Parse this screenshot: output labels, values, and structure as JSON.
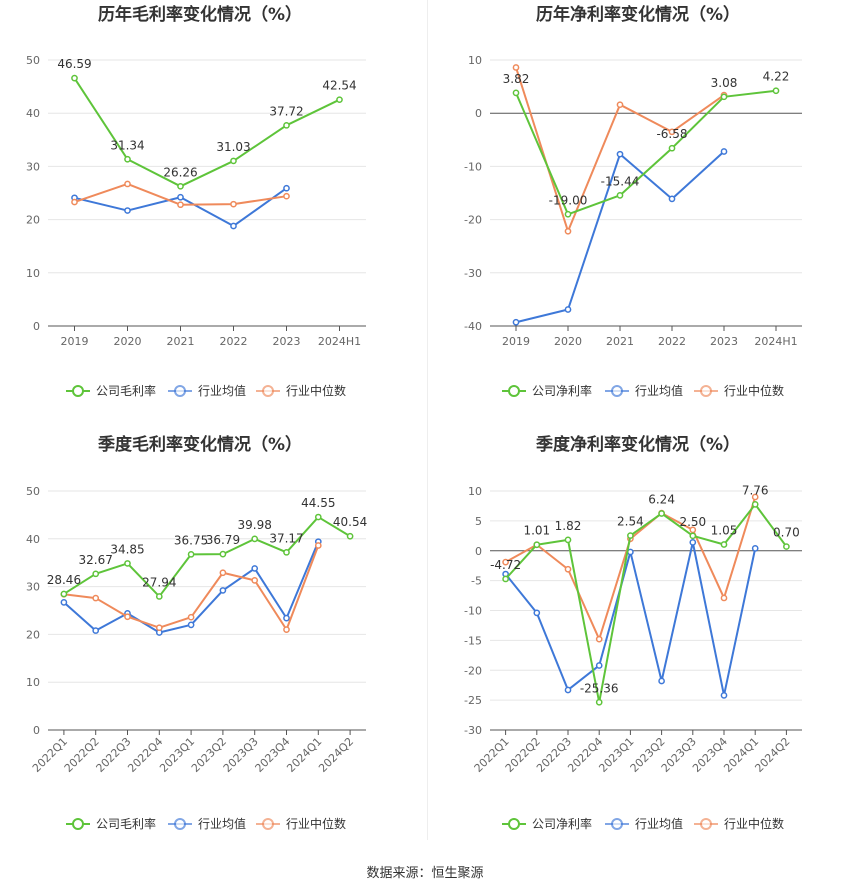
{
  "colors": {
    "company": "#5ec43a",
    "avg": "#3e78d8",
    "median": "#ef8a5b"
  },
  "source_label": "数据来源：恒生聚源",
  "chart_data": [
    {
      "type": "line",
      "title": "历年毛利率变化情况（%）",
      "categories": [
        "2019",
        "2020",
        "2021",
        "2022",
        "2023",
        "2024H1"
      ],
      "ylim": [
        0,
        50
      ],
      "yticks": [
        "0",
        "10",
        "20",
        "30",
        "40",
        "50"
      ],
      "series": [
        {
          "name": "公司毛利率",
          "key": "company",
          "values": [
            46.59,
            31.34,
            26.26,
            31.03,
            37.72,
            42.54
          ],
          "labels": [
            "46.59",
            "31.34",
            "26.26",
            "31.03",
            "37.72",
            "42.54"
          ]
        },
        {
          "name": "行业均值",
          "key": "avg",
          "values": [
            24.1,
            21.7,
            24.2,
            18.8,
            25.9,
            null
          ]
        },
        {
          "name": "行业中位数",
          "key": "median",
          "values": [
            23.3,
            26.7,
            22.8,
            22.9,
            24.4,
            null
          ]
        }
      ]
    },
    {
      "type": "line",
      "title": "历年净利率变化情况（%）",
      "categories": [
        "2019",
        "2020",
        "2021",
        "2022",
        "2023",
        "2024H1"
      ],
      "ylim": [
        -40,
        10
      ],
      "yticks": [
        "-40",
        "-30",
        "-20",
        "-10",
        "0",
        "10"
      ],
      "series": [
        {
          "name": "公司净利率",
          "key": "company",
          "values": [
            3.82,
            -19.0,
            -15.44,
            -6.58,
            3.08,
            4.22
          ],
          "labels": [
            "3.82",
            "-19.00",
            "-15.44",
            "-6.58",
            "3.08",
            "4.22"
          ]
        },
        {
          "name": "行业均值",
          "key": "avg",
          "values": [
            -39.3,
            -36.9,
            -7.7,
            -16.1,
            -7.2,
            null
          ]
        },
        {
          "name": "行业中位数",
          "key": "median",
          "values": [
            8.6,
            -22.2,
            1.6,
            -3.5,
            3.4,
            null
          ]
        }
      ]
    },
    {
      "type": "line",
      "title": "季度毛利率变化情况（%）",
      "categories": [
        "2022Q1",
        "2022Q2",
        "2022Q3",
        "2022Q4",
        "2023Q1",
        "2023Q2",
        "2023Q3",
        "2023Q4",
        "2024Q1",
        "2024Q2"
      ],
      "ylim": [
        0,
        50
      ],
      "yticks": [
        "0",
        "10",
        "20",
        "30",
        "40",
        "50"
      ],
      "series": [
        {
          "name": "公司毛利率",
          "key": "company",
          "values": [
            28.46,
            32.67,
            34.85,
            27.94,
            36.75,
            36.79,
            39.98,
            37.17,
            44.55,
            40.54
          ],
          "labels": [
            "28.46",
            "32.67",
            "34.85",
            "27.94",
            "36.75",
            "36.79",
            "39.98",
            "37.17",
            "44.55",
            "40.54"
          ]
        },
        {
          "name": "行业均值",
          "key": "avg",
          "values": [
            26.7,
            20.8,
            24.4,
            20.4,
            22.0,
            29.2,
            33.8,
            23.4,
            39.4,
            null
          ]
        },
        {
          "name": "行业中位数",
          "key": "median",
          "values": [
            28.4,
            27.6,
            23.7,
            21.4,
            23.6,
            32.9,
            31.3,
            21.0,
            38.6,
            null
          ]
        }
      ]
    },
    {
      "type": "line",
      "title": "季度净利率变化情况（%）",
      "categories": [
        "2022Q1",
        "2022Q2",
        "2022Q3",
        "2022Q4",
        "2023Q1",
        "2023Q2",
        "2023Q3",
        "2023Q4",
        "2024Q1",
        "2024Q2"
      ],
      "ylim": [
        -30,
        10
      ],
      "yticks": [
        "-30",
        "-25",
        "-20",
        "-15",
        "-10",
        "-5",
        "0",
        "5",
        "10"
      ],
      "series": [
        {
          "name": "公司净利率",
          "key": "company",
          "values": [
            -4.72,
            1.01,
            1.82,
            -25.36,
            2.54,
            6.24,
            2.5,
            1.05,
            7.76,
            0.7
          ],
          "labels": [
            "-4.72",
            "1.01",
            "1.82",
            "-25.36",
            "2.54",
            "6.24",
            "2.50",
            "1.05",
            "7.76",
            "0.70"
          ]
        },
        {
          "name": "行业均值",
          "key": "avg",
          "values": [
            -3.9,
            -10.4,
            -23.3,
            -19.2,
            -0.2,
            -21.8,
            1.4,
            -24.2,
            0.4,
            null
          ]
        },
        {
          "name": "行业中位数",
          "key": "median",
          "values": [
            -1.9,
            1.0,
            -3.1,
            -14.8,
            2.0,
            6.3,
            3.5,
            -7.9,
            9.0,
            null
          ]
        }
      ]
    }
  ]
}
